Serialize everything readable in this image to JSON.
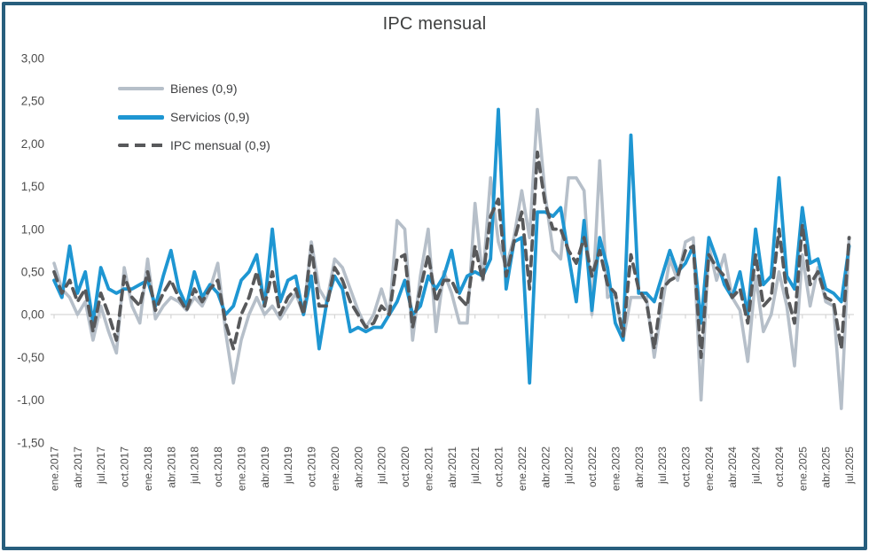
{
  "title": "IPC mensual",
  "legend": {
    "items": [
      {
        "label": "Bienes (0,9)",
        "series": "bienes"
      },
      {
        "label": "Servicios (0,9)",
        "series": "servicios"
      },
      {
        "label": "IPC mensual (0,9)",
        "series": "ipc"
      }
    ]
  },
  "colors": {
    "bienes": "#b6bfc9",
    "servicios": "#1e96d2",
    "ipc": "#58595b",
    "frame_border": "#275e7d",
    "title_text": "#3f4040",
    "axis_text": "#4d4d4d",
    "zero_line": "#d6d6d6"
  },
  "y_axis": {
    "tick_labels": [
      "3,00",
      "2,50",
      "2,00",
      "1,50",
      "1,00",
      "0,50",
      "0,00",
      "-0,50",
      "-1,00",
      "-1,50"
    ],
    "tick_values": [
      3.0,
      2.5,
      2.0,
      1.5,
      1.0,
      0.5,
      0.0,
      -0.5,
      -1.0,
      -1.5
    ]
  },
  "x_axis": {
    "tick_every": 3,
    "tick_labels": [
      "ene.2017",
      "abr.2017",
      "jul.2017",
      "oct.2017",
      "ene.2018",
      "abr.2018",
      "jul.2018",
      "oct.2018",
      "ene.2019",
      "abr.2019",
      "jul.2019",
      "oct.2019",
      "ene.2020",
      "abr.2020",
      "jul.2020",
      "oct.2020",
      "ene.2021",
      "abr.2021",
      "jul.2021",
      "oct.2021",
      "ene.2022",
      "abr.2022",
      "jul.2022",
      "oct.2022",
      "ene.2023",
      "abr.2023",
      "jul.2023",
      "oct.2023",
      "ene.2024",
      "abr.2024",
      "jul.2024",
      "oct.2024",
      "ene.2025",
      "abr.2025",
      "jul.2025"
    ]
  },
  "chart_data": {
    "type": "line",
    "title": "IPC mensual",
    "xlabel": "",
    "ylabel": "",
    "ylim": [
      -1.5,
      3.0
    ],
    "grid": "zero baseline only",
    "legend_position": "inside-top-left",
    "categories": [
      "ene.2017",
      "feb.2017",
      "mar.2017",
      "abr.2017",
      "may.2017",
      "jun.2017",
      "jul.2017",
      "ago.2017",
      "sep.2017",
      "oct.2017",
      "nov.2017",
      "dic.2017",
      "ene.2018",
      "feb.2018",
      "mar.2018",
      "abr.2018",
      "may.2018",
      "jun.2018",
      "jul.2018",
      "ago.2018",
      "sep.2018",
      "oct.2018",
      "nov.2018",
      "dic.2018",
      "ene.2019",
      "feb.2019",
      "mar.2019",
      "abr.2019",
      "may.2019",
      "jun.2019",
      "jul.2019",
      "ago.2019",
      "sep.2019",
      "oct.2019",
      "nov.2019",
      "dic.2019",
      "ene.2020",
      "feb.2020",
      "mar.2020",
      "abr.2020",
      "may.2020",
      "jun.2020",
      "jul.2020",
      "ago.2020",
      "sep.2020",
      "oct.2020",
      "nov.2020",
      "dic.2020",
      "ene.2021",
      "feb.2021",
      "mar.2021",
      "abr.2021",
      "may.2021",
      "jun.2021",
      "jul.2021",
      "ago.2021",
      "sep.2021",
      "oct.2021",
      "nov.2021",
      "dic.2021",
      "ene.2022",
      "feb.2022",
      "mar.2022",
      "abr.2022",
      "may.2022",
      "jun.2022",
      "jul.2022",
      "ago.2022",
      "sep.2022",
      "oct.2022",
      "nov.2022",
      "dic.2022",
      "ene.2023",
      "feb.2023",
      "mar.2023",
      "abr.2023",
      "may.2023",
      "jun.2023",
      "jul.2023",
      "ago.2023",
      "sep.2023",
      "oct.2023",
      "nov.2023",
      "dic.2023",
      "ene.2024",
      "feb.2024",
      "mar.2024",
      "abr.2024",
      "may.2024",
      "jun.2024",
      "jul.2024",
      "ago.2024",
      "sep.2024",
      "oct.2024",
      "nov.2024",
      "dic.2024",
      "ene.2025",
      "feb.2025",
      "mar.2025",
      "abr.2025",
      "may.2025",
      "jun.2025",
      "jul.2025"
    ],
    "series": [
      {
        "name": "Bienes (0,9)",
        "key": "bienes",
        "style": "solid",
        "values": [
          0.6,
          0.3,
          0.2,
          0.0,
          0.15,
          -0.3,
          0.1,
          -0.2,
          -0.45,
          0.55,
          0.1,
          -0.1,
          0.65,
          -0.05,
          0.1,
          0.2,
          0.15,
          0.05,
          0.2,
          0.1,
          0.3,
          0.6,
          -0.2,
          -0.8,
          -0.3,
          0.0,
          0.2,
          0.0,
          0.1,
          -0.05,
          0.1,
          0.25,
          0.0,
          0.85,
          0.3,
          0.15,
          0.65,
          0.55,
          0.3,
          0.05,
          -0.15,
          0.0,
          0.3,
          0.0,
          1.1,
          1.0,
          -0.3,
          0.45,
          1.0,
          -0.2,
          0.5,
          0.25,
          -0.1,
          -0.1,
          1.3,
          0.4,
          1.6,
          0.85,
          0.55,
          0.9,
          1.45,
          0.9,
          2.4,
          1.4,
          0.75,
          0.65,
          1.6,
          1.6,
          1.45,
          0.0,
          1.8,
          0.2,
          0.25,
          -0.3,
          0.2,
          0.2,
          0.2,
          -0.5,
          0.1,
          0.65,
          0.4,
          0.85,
          0.9,
          -1.0,
          0.8,
          0.4,
          0.7,
          0.2,
          0.05,
          -0.55,
          0.45,
          -0.2,
          0.0,
          0.5,
          0.1,
          -0.6,
          0.7,
          0.1,
          0.55,
          0.15,
          0.1,
          -1.1,
          0.9
        ]
      },
      {
        "name": "Servicios (0,9)",
        "key": "servicios",
        "style": "solid",
        "values": [
          0.4,
          0.2,
          0.8,
          0.25,
          0.5,
          -0.1,
          0.55,
          0.3,
          0.25,
          0.3,
          0.3,
          0.35,
          0.4,
          0.1,
          0.45,
          0.75,
          0.3,
          0.1,
          0.5,
          0.2,
          0.35,
          0.25,
          0.0,
          0.1,
          0.4,
          0.5,
          0.7,
          0.1,
          1.0,
          0.15,
          0.4,
          0.45,
          0.0,
          0.45,
          -0.4,
          0.15,
          0.45,
          0.3,
          -0.2,
          -0.15,
          -0.2,
          -0.15,
          -0.15,
          0.0,
          0.15,
          0.4,
          0.0,
          0.1,
          0.45,
          0.3,
          0.45,
          0.75,
          0.25,
          0.45,
          0.5,
          0.45,
          0.65,
          2.4,
          0.3,
          0.85,
          0.9,
          -0.8,
          1.2,
          1.2,
          1.15,
          1.25,
          0.7,
          0.15,
          1.1,
          0.05,
          0.9,
          0.55,
          -0.1,
          -0.3,
          2.1,
          0.25,
          0.25,
          0.15,
          0.45,
          0.75,
          0.5,
          0.6,
          0.8,
          -0.1,
          0.9,
          0.65,
          0.35,
          0.2,
          0.5,
          0.0,
          1.0,
          0.35,
          0.45,
          1.6,
          0.45,
          0.3,
          1.25,
          0.6,
          0.65,
          0.3,
          0.25,
          0.15,
          0.8
        ]
      },
      {
        "name": "IPC mensual (0,9)",
        "key": "ipc",
        "style": "dashed",
        "values": [
          0.5,
          0.25,
          0.4,
          0.15,
          0.3,
          -0.2,
          0.25,
          0.0,
          -0.3,
          0.45,
          0.2,
          0.1,
          0.5,
          0.05,
          0.25,
          0.4,
          0.2,
          0.05,
          0.3,
          0.15,
          0.3,
          0.4,
          -0.1,
          -0.4,
          0.0,
          0.2,
          0.5,
          0.1,
          0.5,
          0.0,
          0.2,
          0.3,
          0.0,
          0.8,
          0.1,
          0.1,
          0.55,
          0.4,
          0.15,
          0.0,
          -0.15,
          -0.1,
          0.1,
          0.0,
          0.65,
          0.7,
          -0.15,
          0.3,
          0.7,
          0.15,
          0.4,
          0.4,
          0.2,
          0.1,
          0.8,
          0.4,
          1.15,
          1.35,
          0.45,
          0.85,
          1.2,
          0.3,
          1.9,
          1.3,
          1.0,
          1.0,
          0.75,
          0.6,
          0.9,
          0.45,
          0.75,
          0.35,
          0.25,
          -0.25,
          0.7,
          0.3,
          0.15,
          -0.4,
          0.3,
          0.4,
          0.45,
          0.75,
          0.8,
          -0.5,
          0.7,
          0.55,
          0.45,
          0.2,
          0.3,
          -0.1,
          0.7,
          0.1,
          0.2,
          1.0,
          0.25,
          -0.1,
          1.05,
          0.35,
          0.5,
          0.2,
          0.15,
          -0.4,
          0.9
        ]
      }
    ]
  }
}
